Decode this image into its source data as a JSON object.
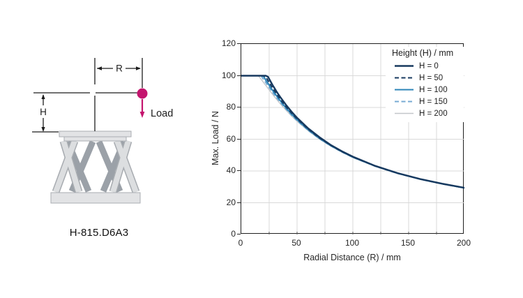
{
  "diagram": {
    "labels": {
      "r": "R",
      "h": "H",
      "load": "Load"
    },
    "model": "H-815.D6A3",
    "colors": {
      "magenta": "#c4156e",
      "leg_light": "#dcdee0",
      "leg_edge": "#a7abb0",
      "leg_dark": "#9ba1a8",
      "plate_fill": "#e2e3e5",
      "plate_stroke": "#a9adb2",
      "ink": "#1c1c1c"
    }
  },
  "chart_data": {
    "type": "line",
    "title": "",
    "xlabel": "Radial Distance (R) / mm",
    "ylabel": "Max. Load / N",
    "xlim": [
      0,
      200
    ],
    "ylim": [
      0,
      120
    ],
    "xticks": [
      0,
      50,
      100,
      150,
      200
    ],
    "yticks": [
      0,
      20,
      40,
      60,
      80,
      100,
      120
    ],
    "x_minor_grid": 25,
    "y_grid": 20,
    "grid_color": "#d9d9d9",
    "legend_title": "Height (H) / mm",
    "legend_position": "upper right inside",
    "x": [
      0,
      5,
      10,
      15,
      16,
      18,
      20,
      22,
      24,
      26,
      28,
      30,
      32,
      35,
      40,
      45,
      50,
      60,
      70,
      80,
      90,
      100,
      120,
      140,
      160,
      180,
      200
    ],
    "series": [
      {
        "name": "H = 0",
        "color": "#17395f",
        "dash": null,
        "width": 2.4,
        "values": [
          100,
          100,
          100,
          100,
          100,
          100,
          100,
          100,
          99.3,
          96.7,
          94.2,
          91.9,
          89.6,
          86.5,
          81.7,
          77.4,
          73.5,
          66.8,
          61.3,
          56.5,
          52.5,
          49,
          43.2,
          38.7,
          35,
          32,
          29.4
        ]
      },
      {
        "name": "H = 50",
        "color": "#17395f",
        "dash": "6 3.5",
        "width": 2.1,
        "values": [
          100,
          100,
          100,
          100,
          100,
          100,
          100,
          99.4,
          96.9,
          94.6,
          92.4,
          90.2,
          88.2,
          85.2,
          80.7,
          76.6,
          72.9,
          66.4,
          60.9,
          56.3,
          52.3,
          48.9,
          43.1,
          38.6,
          35,
          31.9,
          29.4
        ]
      },
      {
        "name": "H = 100",
        "color": "#2d85b8",
        "dash": null,
        "width": 2.1,
        "values": [
          100,
          100,
          100,
          100,
          100,
          100,
          99.5,
          97.2,
          95.1,
          92.9,
          90.8,
          88.9,
          87,
          84.2,
          79.8,
          75.9,
          72.3,
          66,
          60.6,
          56.1,
          52.2,
          48.7,
          43.1,
          38.6,
          34.9,
          31.9,
          29.3
        ]
      },
      {
        "name": "H = 150",
        "color": "#77abd3",
        "dash": "6 3.5",
        "width": 1.9,
        "values": [
          100,
          100,
          100,
          100,
          100,
          99.7,
          97.6,
          95.6,
          93.5,
          91.6,
          89.6,
          87.7,
          85.9,
          83.2,
          79.1,
          75.3,
          71.8,
          65.6,
          60.4,
          55.9,
          52,
          48.6,
          43,
          38.5,
          34.9,
          31.9,
          29.3
        ]
      },
      {
        "name": "H = 200",
        "color": "#c2c6ca",
        "dash": null,
        "width": 1.4,
        "values": [
          100,
          100,
          100,
          100,
          99.4,
          97.6,
          95.7,
          93.9,
          92,
          90.2,
          88.3,
          86.6,
          84.9,
          82.3,
          78.4,
          74.7,
          71.3,
          65.3,
          60.1,
          55.7,
          51.9,
          48.5,
          42.9,
          38.5,
          34.8,
          31.8,
          29.3
        ]
      }
    ]
  }
}
